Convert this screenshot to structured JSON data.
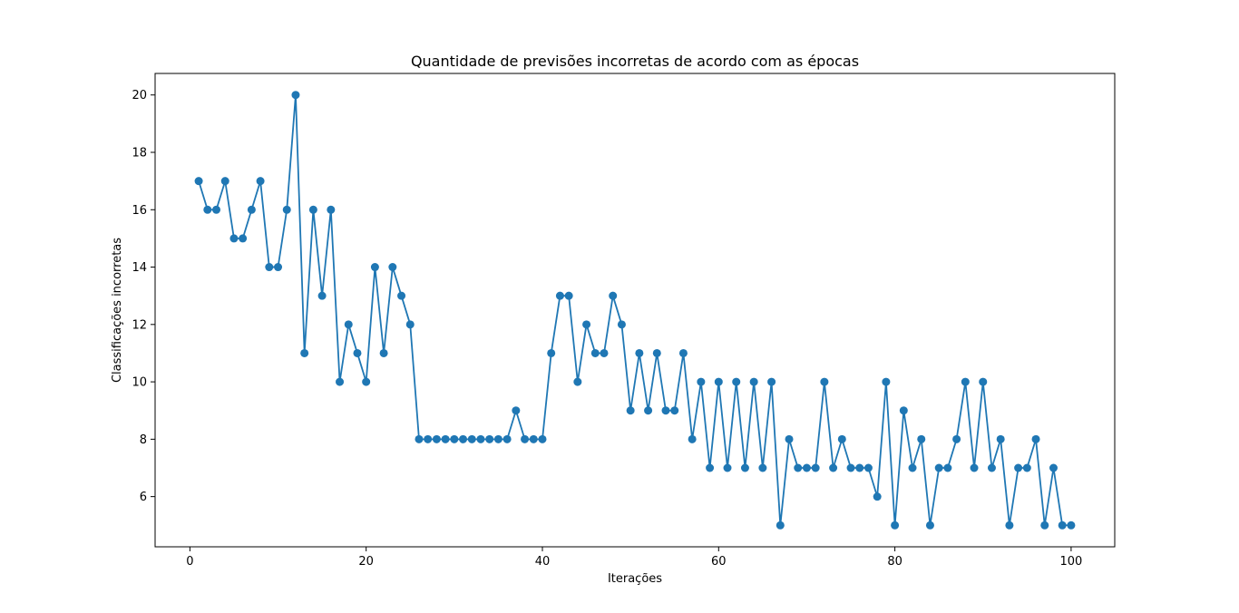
{
  "chart_data": {
    "type": "line",
    "title": "Quantidade de previsões incorretas de acordo com as épocas",
    "xlabel": "Iterações",
    "ylabel": "Classificações incorretas",
    "xlim": [
      -3.95,
      104.95
    ],
    "ylim": [
      4.25,
      20.75
    ],
    "xticks": [
      0,
      20,
      40,
      60,
      80,
      100
    ],
    "yticks": [
      6,
      8,
      10,
      12,
      14,
      16,
      18,
      20
    ],
    "grid": false,
    "marker": "circle",
    "color": "#1f77b4",
    "x": [
      1,
      2,
      3,
      4,
      5,
      6,
      7,
      8,
      9,
      10,
      11,
      12,
      13,
      14,
      15,
      16,
      17,
      18,
      19,
      20,
      21,
      22,
      23,
      24,
      25,
      26,
      27,
      28,
      29,
      30,
      31,
      32,
      33,
      34,
      35,
      36,
      37,
      38,
      39,
      40,
      41,
      42,
      43,
      44,
      45,
      46,
      47,
      48,
      49,
      50,
      51,
      52,
      53,
      54,
      55,
      56,
      57,
      58,
      59,
      60,
      61,
      62,
      63,
      64,
      65,
      66,
      67,
      68,
      69,
      70,
      71,
      72,
      73,
      74,
      75,
      76,
      77,
      78,
      79,
      80,
      81,
      82,
      83,
      84,
      85,
      86,
      87,
      88,
      89,
      90,
      91,
      92,
      93,
      94,
      95,
      96,
      97,
      98,
      99,
      100
    ],
    "y": [
      17,
      16,
      16,
      17,
      15,
      15,
      16,
      17,
      14,
      14,
      16,
      20,
      11,
      16,
      13,
      16,
      10,
      12,
      11,
      10,
      14,
      11,
      14,
      13,
      12,
      8,
      8,
      8,
      8,
      8,
      8,
      8,
      8,
      8,
      8,
      8,
      9,
      8,
      8,
      8,
      11,
      13,
      13,
      10,
      12,
      11,
      11,
      13,
      12,
      9,
      11,
      9,
      11,
      9,
      9,
      11,
      8,
      10,
      7,
      10,
      7,
      10,
      7,
      10,
      7,
      10,
      5,
      8,
      7,
      7,
      7,
      10,
      7,
      8,
      7,
      7,
      7,
      6,
      10,
      5,
      9,
      7,
      8,
      5,
      7,
      7,
      8,
      10,
      7,
      10,
      7,
      8,
      5,
      7,
      7,
      8,
      5,
      7,
      5,
      5
    ]
  }
}
